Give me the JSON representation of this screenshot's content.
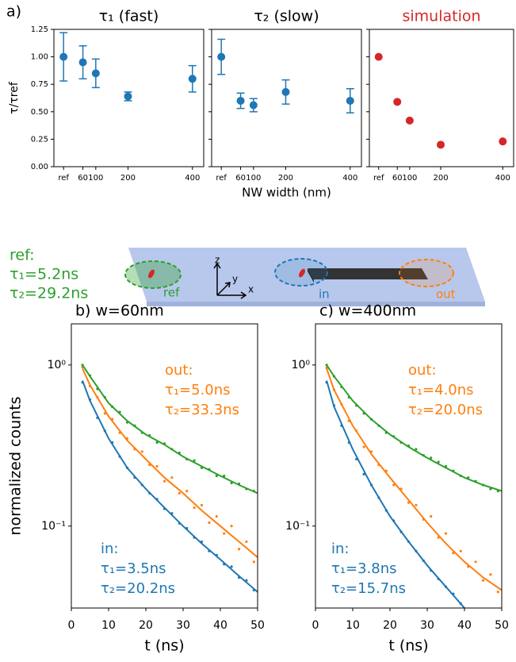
{
  "chart_data": [
    {
      "type": "scatter",
      "panel_label": "a)",
      "title": "τ₁ (fast)",
      "title_color": "#000000",
      "ylabel": "τ/τref",
      "xlim": [
        -30,
        435
      ],
      "xticks": [
        {
          "value": 0,
          "label": "ref"
        },
        60,
        100,
        200,
        400
      ],
      "ylim": [
        0,
        1.25
      ],
      "yticks": [
        {
          "value": 0,
          "label": "0.00"
        },
        {
          "value": 0.25,
          "label": "0.25"
        },
        {
          "value": 0.5,
          "label": "0.50"
        },
        {
          "value": 0.75,
          "label": "0.75"
        },
        {
          "value": 1,
          "label": "1.00"
        },
        {
          "value": 1.25,
          "label": "1.25"
        }
      ],
      "ytick_labels": true,
      "series": [
        {
          "color": "#1f77b4",
          "x": [
            0,
            60,
            100,
            200,
            400
          ],
          "values": [
            1.0,
            0.95,
            0.85,
            0.64,
            0.8
          ],
          "errors": [
            0.22,
            0.15,
            0.13,
            0.04,
            0.12
          ]
        }
      ]
    },
    {
      "type": "scatter",
      "title": "τ₂ (slow)",
      "title_color": "#000000",
      "xlabel": "NW width (nm)",
      "xlim": [
        -30,
        435
      ],
      "xticks": [
        {
          "value": 0,
          "label": "ref"
        },
        60,
        100,
        200,
        400
      ],
      "ylim": [
        0,
        1.25
      ],
      "yticks": [
        0,
        0.25,
        0.5,
        0.75,
        1,
        1.25
      ],
      "ytick_labels": false,
      "series": [
        {
          "color": "#1f77b4",
          "x": [
            0,
            60,
            100,
            200,
            400
          ],
          "values": [
            1.0,
            0.6,
            0.56,
            0.68,
            0.6
          ],
          "errors": [
            0.16,
            0.07,
            0.06,
            0.11,
            0.11
          ]
        }
      ]
    },
    {
      "type": "scatter",
      "title": "simulation",
      "title_color": "#d62728",
      "xlim": [
        -30,
        435
      ],
      "xticks": [
        {
          "value": 0,
          "label": "ref"
        },
        60,
        100,
        200,
        400
      ],
      "ylim": [
        0,
        1.25
      ],
      "yticks": [
        0,
        0.25,
        0.5,
        0.75,
        1,
        1.25
      ],
      "ytick_labels": false,
      "series": [
        {
          "color": "#d62728",
          "x": [
            0,
            60,
            100,
            200,
            400
          ],
          "values": [
            1.0,
            0.59,
            0.42,
            0.2,
            0.23
          ]
        }
      ]
    },
    {
      "type": "line",
      "title": "b)  w=60nm",
      "title_color": "#000000",
      "ylabel": "normalized counts",
      "xlabel": "t (ns)",
      "ylog": true,
      "xlim": [
        0,
        50
      ],
      "xticks": [
        0,
        10,
        20,
        30,
        40,
        50
      ],
      "ylim": [
        0.031,
        1.8
      ],
      "yticks": [
        {
          "value": 1,
          "label": "10⁰"
        },
        {
          "value": 0.1,
          "label": "10⁻¹"
        }
      ],
      "ytick_labels": true,
      "annotations": [
        {
          "text": "out:",
          "color": "#ff7f0e"
        },
        {
          "text": "τ₁=5.0ns",
          "color": "#ff7f0e"
        },
        {
          "text": "τ₂=33.3ns",
          "color": "#ff7f0e"
        },
        {
          "text": "in:",
          "color": "#1f77b4"
        },
        {
          "text": "τ₁=3.5ns",
          "color": "#1f77b4"
        },
        {
          "text": "τ₂=20.2ns",
          "color": "#1f77b4"
        }
      ],
      "series": [
        {
          "style": "scatter",
          "color": "#2ca02c",
          "x": [
            3,
            5,
            7,
            9,
            11,
            13,
            15,
            17,
            19,
            21,
            23,
            25,
            27,
            29,
            31,
            33,
            35,
            37,
            39,
            41,
            43,
            45,
            47,
            49
          ],
          "values": [
            1.0,
            0.86,
            0.71,
            0.63,
            0.55,
            0.51,
            0.44,
            0.42,
            0.38,
            0.365,
            0.33,
            0.325,
            0.3,
            0.285,
            0.26,
            0.255,
            0.23,
            0.225,
            0.205,
            0.205,
            0.185,
            0.183,
            0.17,
            0.165
          ]
        },
        {
          "style": "scatter",
          "color": "#ff7f0e",
          "x": [
            3,
            5,
            7,
            9,
            11,
            13,
            15,
            17,
            19,
            21,
            23,
            25,
            27,
            29,
            31,
            33,
            35,
            37,
            39,
            41,
            43,
            45,
            47,
            49
          ],
          "values": [
            0.97,
            0.74,
            0.63,
            0.5,
            0.46,
            0.38,
            0.35,
            0.3,
            0.29,
            0.24,
            0.235,
            0.19,
            0.2,
            0.16,
            0.165,
            0.13,
            0.135,
            0.105,
            0.115,
            0.09,
            0.1,
            0.072,
            0.08,
            0.06
          ]
        },
        {
          "style": "scatter",
          "color": "#1f77b4",
          "x": [
            3,
            5,
            7,
            9,
            11,
            13,
            15,
            17,
            19,
            21,
            23,
            25,
            27,
            29,
            31,
            33,
            35,
            37,
            39,
            41,
            43,
            45,
            47,
            49
          ],
          "values": [
            0.78,
            0.61,
            0.47,
            0.39,
            0.33,
            0.27,
            0.23,
            0.2,
            0.18,
            0.16,
            0.147,
            0.128,
            0.12,
            0.104,
            0.097,
            0.085,
            0.08,
            0.07,
            0.066,
            0.058,
            0.056,
            0.048,
            0.046,
            0.04
          ]
        },
        {
          "style": "line",
          "color": "#2ca02c",
          "x": [
            3,
            5,
            10,
            15,
            20,
            25,
            30,
            35,
            40,
            45,
            50
          ],
          "values": [
            1.0,
            0.85,
            0.58,
            0.45,
            0.37,
            0.32,
            0.27,
            0.235,
            0.205,
            0.18,
            0.16
          ]
        },
        {
          "style": "line",
          "color": "#ff7f0e",
          "x": [
            3,
            5,
            10,
            15,
            20,
            25,
            30,
            35,
            40,
            45,
            50
          ],
          "values": [
            0.95,
            0.75,
            0.48,
            0.34,
            0.26,
            0.2,
            0.16,
            0.125,
            0.1,
            0.08,
            0.064
          ]
        },
        {
          "style": "line",
          "color": "#1f77b4",
          "x": [
            3,
            5,
            10,
            15,
            20,
            25,
            30,
            35,
            40,
            45,
            50
          ],
          "values": [
            0.8,
            0.6,
            0.35,
            0.23,
            0.17,
            0.13,
            0.1,
            0.078,
            0.062,
            0.049,
            0.039
          ]
        }
      ]
    },
    {
      "type": "line",
      "title": "c)  w=400nm",
      "title_color": "#000000",
      "xlabel": "t (ns)",
      "ylog": true,
      "xlim": [
        0,
        50
      ],
      "xticks": [
        0,
        10,
        20,
        30,
        40,
        50
      ],
      "ylim": [
        0.031,
        1.8
      ],
      "yticks": [
        {
          "value": 1,
          "label": "10⁰"
        },
        {
          "value": 0.1,
          "label": "10⁻¹"
        }
      ],
      "ytick_labels": true,
      "annotations": [
        {
          "text": "out:",
          "color": "#ff7f0e"
        },
        {
          "text": "τ₁=4.0ns",
          "color": "#ff7f0e"
        },
        {
          "text": "τ₂=20.0ns",
          "color": "#ff7f0e"
        },
        {
          "text": "in:",
          "color": "#1f77b4"
        },
        {
          "text": "τ₁=3.8ns",
          "color": "#1f77b4"
        },
        {
          "text": "τ₂=15.7ns",
          "color": "#1f77b4"
        }
      ],
      "series": [
        {
          "style": "scatter",
          "color": "#2ca02c",
          "x": [
            3,
            5,
            7,
            9,
            11,
            13,
            15,
            17,
            19,
            21,
            23,
            25,
            27,
            29,
            31,
            33,
            35,
            37,
            39,
            41,
            43,
            45,
            47,
            49
          ],
          "values": [
            1.0,
            0.85,
            0.73,
            0.63,
            0.56,
            0.5,
            0.46,
            0.42,
            0.38,
            0.36,
            0.33,
            0.315,
            0.3,
            0.275,
            0.265,
            0.25,
            0.235,
            0.22,
            0.205,
            0.2,
            0.19,
            0.18,
            0.17,
            0.165
          ]
        },
        {
          "style": "scatter",
          "color": "#ff7f0e",
          "x": [
            3,
            5,
            7,
            9,
            11,
            13,
            15,
            17,
            19,
            21,
            23,
            25,
            27,
            29,
            31,
            33,
            35,
            37,
            39,
            41,
            43,
            45,
            47,
            49
          ],
          "values": [
            0.96,
            0.7,
            0.57,
            0.45,
            0.39,
            0.31,
            0.29,
            0.24,
            0.22,
            0.18,
            0.17,
            0.14,
            0.135,
            0.11,
            0.115,
            0.085,
            0.09,
            0.068,
            0.07,
            0.056,
            0.06,
            0.046,
            0.05,
            0.039
          ]
        },
        {
          "style": "scatter",
          "color": "#1f77b4",
          "x": [
            3,
            5,
            7,
            9,
            11,
            13,
            15,
            17,
            19,
            21,
            23,
            25,
            27,
            29,
            31,
            33,
            35,
            37,
            39,
            41,
            43,
            45,
            47,
            49
          ],
          "values": [
            0.78,
            0.56,
            0.42,
            0.33,
            0.26,
            0.21,
            0.18,
            0.15,
            0.125,
            0.108,
            0.092,
            0.08,
            0.07,
            0.061,
            0.053,
            0.047,
            0.042,
            0.038,
            0.033,
            null,
            null,
            null,
            null,
            null
          ]
        },
        {
          "style": "line",
          "color": "#2ca02c",
          "x": [
            3,
            5,
            10,
            15,
            20,
            25,
            30,
            35,
            40,
            45,
            50
          ],
          "values": [
            1.0,
            0.85,
            0.6,
            0.46,
            0.37,
            0.31,
            0.265,
            0.23,
            0.2,
            0.18,
            0.165
          ]
        },
        {
          "style": "line",
          "color": "#ff7f0e",
          "x": [
            3,
            5,
            10,
            15,
            20,
            25,
            30,
            35,
            40,
            45,
            50
          ],
          "values": [
            0.95,
            0.7,
            0.42,
            0.28,
            0.2,
            0.145,
            0.105,
            0.078,
            0.06,
            0.048,
            0.04
          ]
        },
        {
          "style": "line",
          "color": "#1f77b4",
          "x": [
            3,
            5,
            10,
            15,
            20,
            25,
            30,
            35,
            40,
            45,
            50
          ],
          "values": [
            0.8,
            0.55,
            0.3,
            0.18,
            0.115,
            0.08,
            0.057,
            0.042,
            0.031,
            null,
            null
          ]
        }
      ]
    }
  ],
  "diagram": {
    "ref_label": "ref:",
    "ref_tau1": "τ₁=5.2ns",
    "ref_tau2": "τ₂=29.2ns",
    "spots": [
      "ref",
      "in",
      "out"
    ],
    "axes": [
      "z",
      "y",
      "x"
    ]
  }
}
